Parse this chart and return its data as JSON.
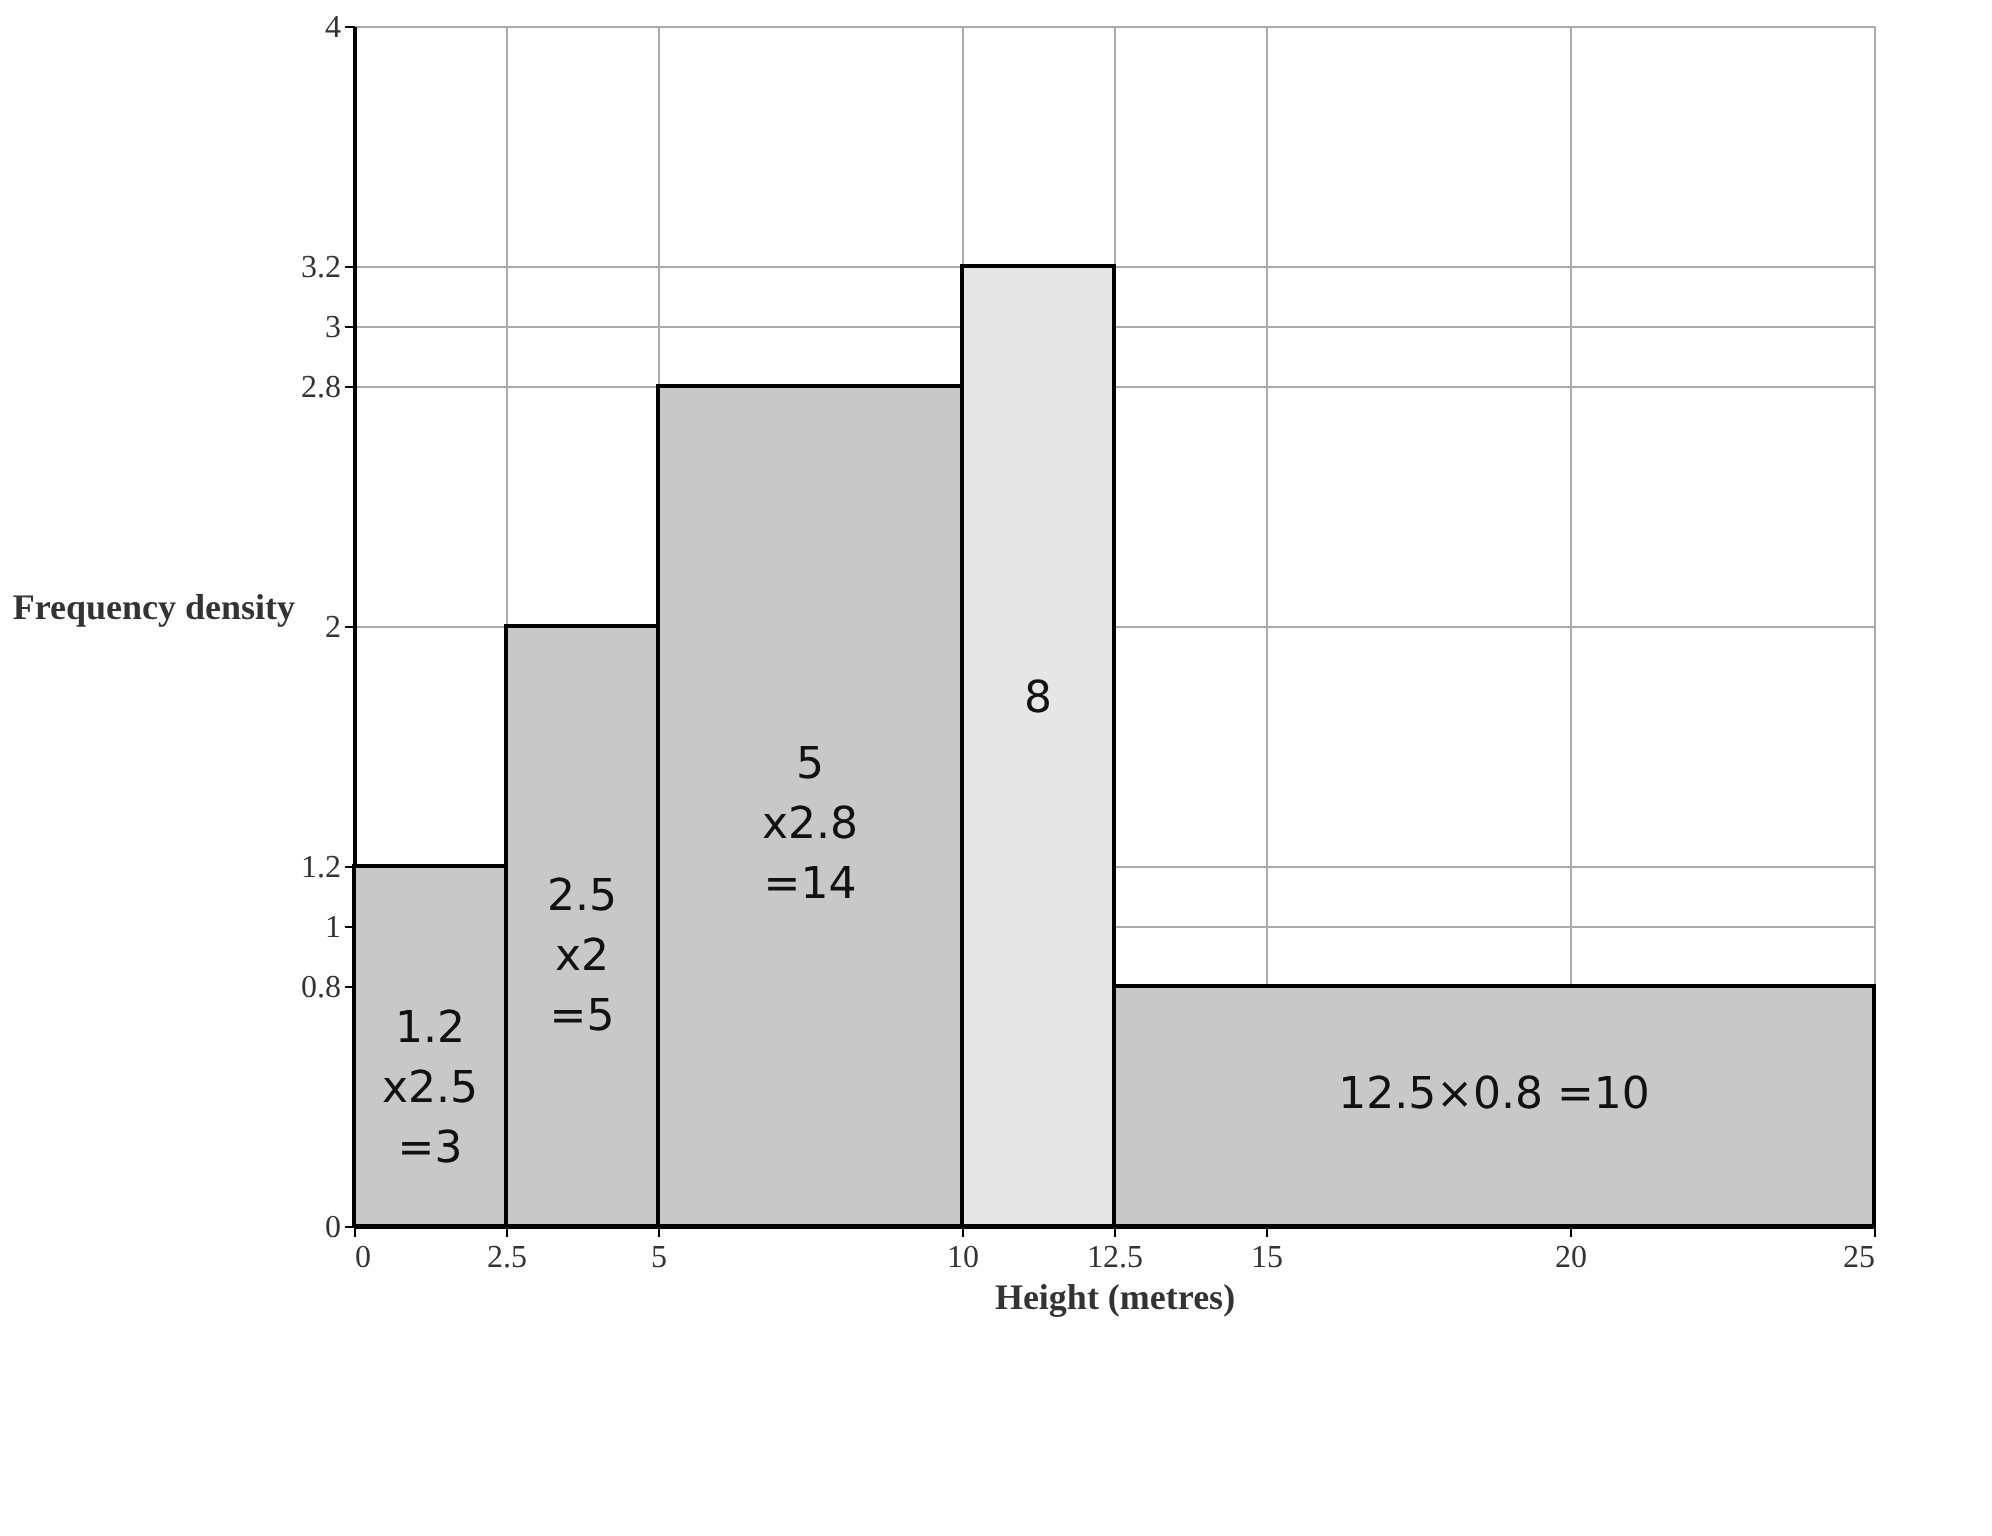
{
  "chart_data": {
    "type": "histogram",
    "xlabel": "Height (metres)",
    "ylabel": "Frequency density",
    "bins": [
      0,
      2.5,
      5,
      10,
      12.5,
      25
    ],
    "values": [
      1.2,
      2,
      2.8,
      3.2,
      0.8
    ],
    "colors": [
      "#c8c8c8",
      "#c8c8c8",
      "#c8c8c8",
      "#e6e6e6",
      "#c8c8c8"
    ],
    "xlim": [
      0,
      25
    ],
    "ylim": [
      0,
      4
    ],
    "xticks": [
      0,
      2.5,
      5,
      10,
      12.5,
      15,
      20,
      25
    ],
    "yticks": [
      0,
      0.8,
      1,
      1.2,
      2,
      2.8,
      3,
      3.2,
      4
    ],
    "grid": true,
    "annotations": [
      "1.2 x2.5 =3",
      "2.5 x2 =5",
      "5 x2.8 =14",
      "8",
      "12.5×0.8 =10"
    ]
  }
}
